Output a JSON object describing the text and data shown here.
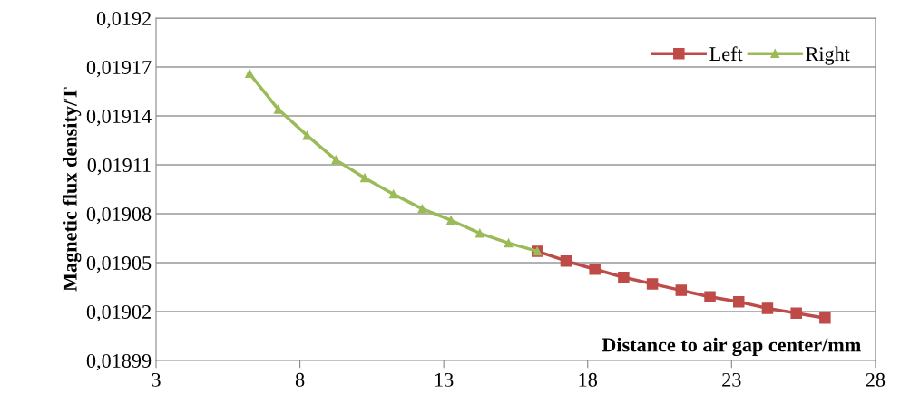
{
  "chart_data": {
    "type": "line",
    "xlabel": "Distance to air gap center/mm",
    "ylabel": "Magnetic flux density/T",
    "series": [
      {
        "name": "Left",
        "color": "#be4b48",
        "marker": "square",
        "x": [
          16.25,
          17.25,
          18.25,
          19.25,
          20.25,
          21.25,
          22.25,
          23.25,
          24.25,
          25.25,
          26.25
        ],
        "values": [
          0.019057,
          0.019051,
          0.019046,
          0.019041,
          0.019037,
          0.019033,
          0.019029,
          0.019026,
          0.019022,
          0.019019,
          0.019016
        ]
      },
      {
        "name": "Right",
        "color": "#9bbb59",
        "marker": "triangle",
        "x": [
          6.25,
          7.25,
          8.25,
          9.25,
          10.25,
          11.25,
          12.25,
          13.25,
          14.25,
          15.25,
          16.25
        ],
        "values": [
          0.019166,
          0.019144,
          0.019128,
          0.019113,
          0.019102,
          0.019092,
          0.019083,
          0.019076,
          0.019068,
          0.019062,
          0.019057
        ]
      }
    ],
    "xlim": [
      3,
      28
    ],
    "xticks": [
      3,
      8,
      13,
      18,
      23,
      28
    ],
    "ylim": [
      0.01899,
      0.0192
    ],
    "yticks": [
      {
        "value": 0.01899,
        "label": "0,01899"
      },
      {
        "value": 0.01902,
        "label": "0,01902"
      },
      {
        "value": 0.01905,
        "label": "0,01905"
      },
      {
        "value": 0.01908,
        "label": "0,01908"
      },
      {
        "value": 0.01911,
        "label": "0,01911"
      },
      {
        "value": 0.01914,
        "label": "0,01914"
      },
      {
        "value": 0.01917,
        "label": "0,01917"
      },
      {
        "value": 0.0192,
        "label": "0,0192"
      }
    ],
    "grid": "y",
    "legend": "top right",
    "line_style": "solid"
  }
}
